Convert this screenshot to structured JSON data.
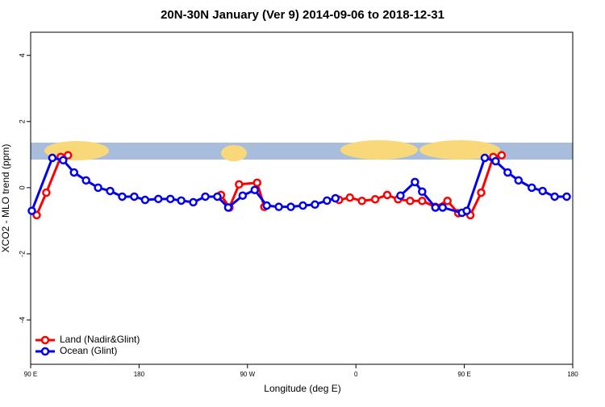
{
  "chart_data": {
    "type": "line",
    "title": "20N-30N January (Ver 9)   2014-09-06 to 2018-12-31",
    "x_label": "Longitude (deg E)",
    "y_label": "XCO2 - MLO trend (ppm)",
    "xlim": [
      90,
      540
    ],
    "ylim": [
      -5.34,
      4.7
    ],
    "xticks": [
      {
        "value": 90,
        "label": "90 E"
      },
      180,
      {
        "value": 270,
        "label": "90 W"
      },
      {
        "value": 360,
        "label": "0"
      },
      {
        "value": 450,
        "label": "90 E"
      },
      {
        "value": 540,
        "label": "180"
      }
    ],
    "yticks": [
      -4,
      -2,
      0,
      2,
      4
    ],
    "legend": "bottom-left",
    "series": [
      {
        "name": "Land (Nadir&Glint)",
        "color": "#ff0000",
        "x": [
          95,
          103,
          115,
          121,
          null,
          248,
          255,
          263,
          278,
          284,
          null,
          346,
          355,
          365,
          376,
          386,
          395,
          405,
          415,
          426,
          436,
          445,
          455,
          464,
          474,
          481
        ],
        "values": [
          -0.83,
          -0.15,
          0.93,
          0.98,
          null,
          -0.22,
          -0.6,
          0.1,
          0.15,
          -0.58,
          null,
          -0.37,
          -0.3,
          -0.4,
          -0.35,
          -0.22,
          -0.35,
          -0.4,
          -0.4,
          -0.58,
          -0.4,
          -0.77,
          -0.83,
          -0.15,
          0.93,
          0.98
        ]
      },
      {
        "name": "Ocean (Glint)",
        "color": "#0000ee",
        "x": [
          91,
          108,
          117,
          126,
          136,
          146,
          156,
          166,
          176,
          185,
          196,
          206,
          215,
          225,
          235,
          245,
          254,
          266,
          276,
          286,
          296,
          306,
          316,
          326,
          336,
          343,
          null,
          397,
          409,
          415,
          426,
          432,
          448,
          452,
          467,
          476,
          486,
          495,
          506,
          515,
          525,
          535
        ],
        "values": [
          -0.7,
          0.9,
          0.83,
          0.46,
          0.22,
          0,
          -0.1,
          -0.27,
          -0.27,
          -0.37,
          -0.34,
          -0.34,
          -0.39,
          -0.44,
          -0.27,
          -0.27,
          -0.6,
          -0.24,
          -0.07,
          -0.54,
          -0.58,
          -0.58,
          -0.54,
          -0.51,
          -0.39,
          -0.32,
          null,
          -0.24,
          0.17,
          -0.12,
          -0.6,
          -0.6,
          -0.76,
          -0.7,
          0.9,
          0.8,
          0.46,
          0.22,
          0,
          -0.1,
          -0.27,
          -0.27
        ]
      }
    ]
  }
}
